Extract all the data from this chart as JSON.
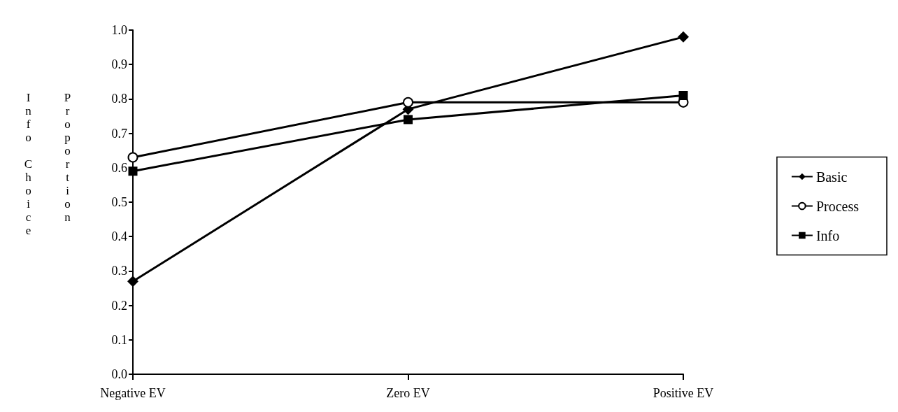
{
  "chart_data": {
    "type": "line",
    "ylabel": "Info Choice Proportion",
    "categories": [
      "Negative EV",
      "Zero EV",
      "Positive EV"
    ],
    "ylim": [
      0,
      1
    ],
    "yticks": [
      {
        "value": 0,
        "label": "0.0"
      },
      0.1,
      0.2,
      0.3,
      0.4,
      0.5,
      0.6,
      0.7,
      0.8,
      0.9,
      {
        "value": 1,
        "label": "1.0"
      }
    ],
    "grid": false,
    "legend": "right",
    "series": [
      {
        "name": "Basic",
        "color": "#000000",
        "marker": "diamond",
        "values": [
          0.27,
          0.77,
          0.98
        ]
      },
      {
        "name": "Process",
        "color": "#000000",
        "marker": "circle",
        "values": [
          0.63,
          0.79,
          0.79
        ]
      },
      {
        "name": "Info",
        "color": "#000000",
        "marker": "square",
        "values": [
          0.59,
          0.74,
          0.81
        ]
      }
    ]
  }
}
